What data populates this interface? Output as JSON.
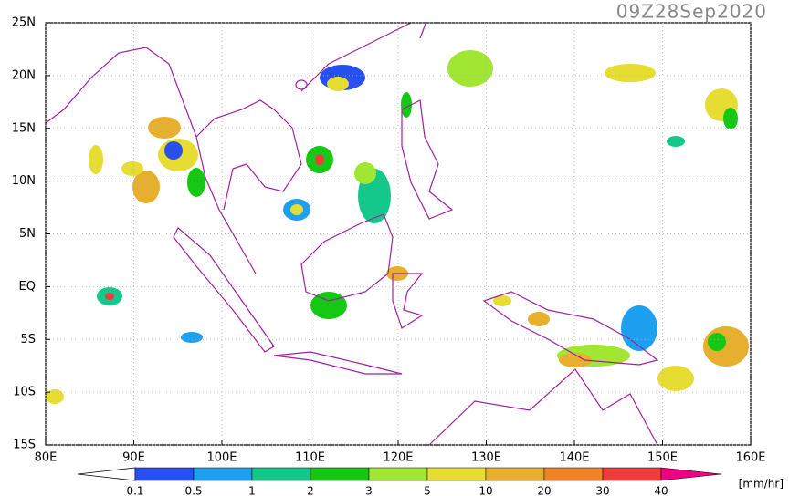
{
  "map": {
    "title": "09Z28Sep2020",
    "xlim": [
      80,
      160
    ],
    "ylim": [
      -15,
      25
    ],
    "xticks": [
      {
        "value": 80,
        "label": "80E"
      },
      {
        "value": 90,
        "label": "90E"
      },
      {
        "value": 100,
        "label": "100E"
      },
      {
        "value": 110,
        "label": "110E"
      },
      {
        "value": 120,
        "label": "120E"
      },
      {
        "value": 130,
        "label": "130E"
      },
      {
        "value": 140,
        "label": "140E"
      },
      {
        "value": 150,
        "label": "150E"
      },
      {
        "value": 160,
        "label": "160E"
      }
    ],
    "yticks": [
      {
        "value": -15,
        "label": "15S"
      },
      {
        "value": -10,
        "label": "10S"
      },
      {
        "value": -5,
        "label": "5S"
      },
      {
        "value": 0,
        "label": "EQ"
      },
      {
        "value": 5,
        "label": "5N"
      },
      {
        "value": 10,
        "label": "10N"
      },
      {
        "value": 15,
        "label": "15N"
      },
      {
        "value": 20,
        "label": "20N"
      },
      {
        "value": 25,
        "label": "25N"
      }
    ],
    "grid": true
  },
  "colorbar": {
    "levels": [
      0.1,
      0.5,
      1,
      2,
      3,
      5,
      10,
      20,
      30,
      40
    ],
    "colors": [
      "#ffffff",
      "#2850f0",
      "#1ea0f0",
      "#14c88c",
      "#14c814",
      "#a0e632",
      "#e6dc32",
      "#e6af2d",
      "#f08228",
      "#f03c3c",
      "#f00082"
    ],
    "unit": "[mm/hr]"
  }
}
